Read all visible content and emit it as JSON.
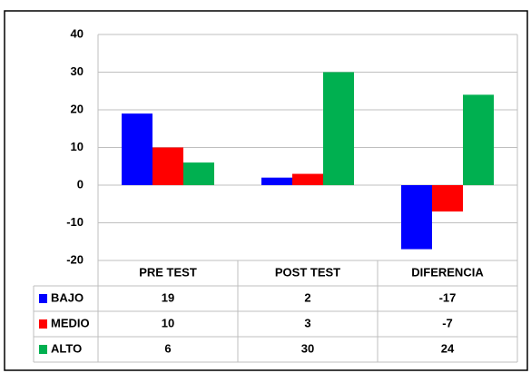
{
  "chart_data": {
    "type": "bar",
    "categories": [
      "PRE TEST",
      "POST TEST",
      "DIFERENCIA"
    ],
    "series": [
      {
        "name": "BAJO",
        "color": "#0000ff",
        "values": [
          19,
          2,
          -17
        ]
      },
      {
        "name": "MEDIO",
        "color": "#ff0000",
        "values": [
          10,
          3,
          -7
        ]
      },
      {
        "name": "ALTO",
        "color": "#00b050",
        "values": [
          6,
          30,
          24
        ]
      }
    ],
    "ylim": [
      -20,
      40
    ],
    "yticks": [
      -20,
      -10,
      0,
      10,
      20,
      30,
      40
    ],
    "grid": true
  }
}
